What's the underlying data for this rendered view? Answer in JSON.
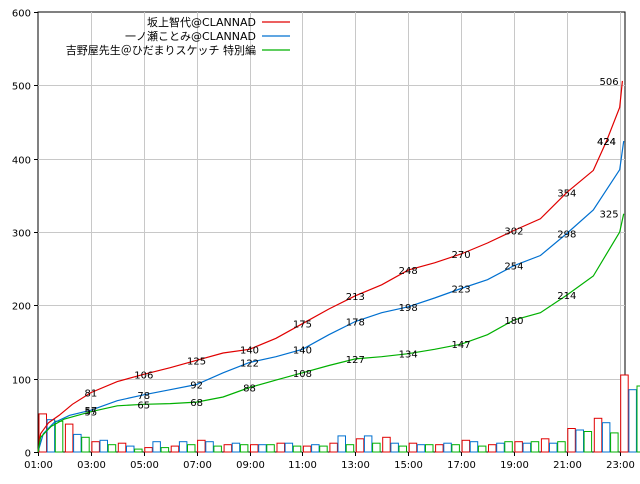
{
  "chart_data": {
    "type": "line",
    "title": "",
    "xlabel": "",
    "ylabel": "",
    "ylim": [
      0,
      600
    ],
    "y_ticks": [
      0,
      100,
      200,
      300,
      400,
      500,
      600
    ],
    "x_tick_labels": [
      "01:00",
      "03:00",
      "05:00",
      "07:00",
      "09:00",
      "11:00",
      "13:00",
      "15:00",
      "17:00",
      "19:00",
      "21:00",
      "23:00"
    ],
    "x_range_hours": [
      1,
      23.2
    ],
    "grid": true,
    "legend_position": "top-left",
    "series": [
      {
        "name": "坂上智代@CLANNAD",
        "color": "#e00000",
        "cumulative": [
          [
            1,
            0
          ],
          [
            1.1,
            25
          ],
          [
            1.4,
            40
          ],
          [
            1.8,
            50
          ],
          [
            2.3,
            65
          ],
          [
            3.0,
            81
          ],
          [
            4.0,
            96
          ],
          [
            5.0,
            106
          ],
          [
            6.0,
            115
          ],
          [
            7.0,
            125
          ],
          [
            8.0,
            135
          ],
          [
            9.0,
            140
          ],
          [
            10.0,
            155
          ],
          [
            11.0,
            175
          ],
          [
            12.0,
            195
          ],
          [
            13.0,
            213
          ],
          [
            14.0,
            228
          ],
          [
            15.0,
            248
          ],
          [
            16.0,
            258
          ],
          [
            17.0,
            270
          ],
          [
            18.0,
            285
          ],
          [
            19.0,
            302
          ],
          [
            20.0,
            318
          ],
          [
            21.0,
            354
          ],
          [
            22.0,
            384
          ],
          [
            22.5,
            424
          ],
          [
            23.0,
            470
          ],
          [
            23.1,
            506
          ]
        ],
        "labels": [
          {
            "x": 3.0,
            "v": 81
          },
          {
            "x": 5.0,
            "v": 106
          },
          {
            "x": 7.0,
            "v": 125
          },
          {
            "x": 9.0,
            "v": 140
          },
          {
            "x": 11.0,
            "v": 175
          },
          {
            "x": 13.0,
            "v": 213
          },
          {
            "x": 15.0,
            "v": 248
          },
          {
            "x": 17.0,
            "v": 270
          },
          {
            "x": 19.0,
            "v": 302
          },
          {
            "x": 21.0,
            "v": 354
          },
          {
            "x": 22.5,
            "v": 424
          },
          {
            "x": 22.6,
            "v": 506
          }
        ],
        "hourly": [
          52,
          38,
          14,
          12,
          6,
          8,
          16,
          10,
          10,
          12,
          8,
          12,
          18,
          20,
          12,
          10,
          16,
          10,
          14,
          18,
          32,
          46,
          105
        ]
      },
      {
        "name": "一ノ瀬ことみ@CLANNAD",
        "color": "#0070d0",
        "cumulative": [
          [
            1,
            0
          ],
          [
            1.2,
            25
          ],
          [
            1.6,
            40
          ],
          [
            2.2,
            50
          ],
          [
            3.0,
            57
          ],
          [
            4.0,
            70
          ],
          [
            5.0,
            78
          ],
          [
            6.0,
            85
          ],
          [
            7.0,
            92
          ],
          [
            8.0,
            108
          ],
          [
            9.0,
            122
          ],
          [
            10.0,
            130
          ],
          [
            11.0,
            140
          ],
          [
            12.0,
            160
          ],
          [
            13.0,
            178
          ],
          [
            14.0,
            190
          ],
          [
            15.0,
            198
          ],
          [
            16.0,
            210
          ],
          [
            17.0,
            223
          ],
          [
            18.0,
            235
          ],
          [
            19.0,
            254
          ],
          [
            20.0,
            268
          ],
          [
            21.0,
            298
          ],
          [
            22.0,
            330
          ],
          [
            23.0,
            385
          ],
          [
            23.15,
            424
          ]
        ],
        "labels": [
          {
            "x": 3.0,
            "v": 57
          },
          {
            "x": 5.0,
            "v": 78
          },
          {
            "x": 7.0,
            "v": 92
          },
          {
            "x": 9.0,
            "v": 122
          },
          {
            "x": 11.0,
            "v": 140
          },
          {
            "x": 13.0,
            "v": 178
          },
          {
            "x": 15.0,
            "v": 198
          },
          {
            "x": 17.0,
            "v": 223
          },
          {
            "x": 19.0,
            "v": 254
          },
          {
            "x": 21.0,
            "v": 298
          },
          {
            "x": 22.5,
            "v": 424
          }
        ],
        "hourly": [
          44,
          24,
          16,
          8,
          14,
          14,
          14,
          12,
          10,
          12,
          10,
          22,
          22,
          12,
          10,
          12,
          14,
          12,
          12,
          12,
          30,
          40,
          85
        ]
      },
      {
        "name": "吉野屋先生＠ひだまりスケッチ 特別編",
        "color": "#00b000",
        "cumulative": [
          [
            1,
            0
          ],
          [
            1.1,
            20
          ],
          [
            1.5,
            35
          ],
          [
            2.0,
            45
          ],
          [
            3.0,
            55
          ],
          [
            4.0,
            63
          ],
          [
            5.0,
            65
          ],
          [
            6.0,
            66
          ],
          [
            7.0,
            68
          ],
          [
            8.0,
            75
          ],
          [
            9.0,
            88
          ],
          [
            10.0,
            98
          ],
          [
            11.0,
            108
          ],
          [
            12.0,
            118
          ],
          [
            13.0,
            127
          ],
          [
            14.0,
            130
          ],
          [
            15.0,
            134
          ],
          [
            16.0,
            140
          ],
          [
            17.0,
            147
          ],
          [
            18.0,
            160
          ],
          [
            19.0,
            180
          ],
          [
            20.0,
            190
          ],
          [
            21.0,
            214
          ],
          [
            22.0,
            240
          ],
          [
            23.0,
            300
          ],
          [
            23.15,
            325
          ]
        ],
        "labels": [
          {
            "x": 3.0,
            "v": 55
          },
          {
            "x": 5.0,
            "v": 65
          },
          {
            "x": 7.0,
            "v": 68
          },
          {
            "x": 9.0,
            "v": 88
          },
          {
            "x": 11.0,
            "v": 108
          },
          {
            "x": 13.0,
            "v": 127
          },
          {
            "x": 15.0,
            "v": 134
          },
          {
            "x": 17.0,
            "v": 147
          },
          {
            "x": 19.0,
            "v": 180
          },
          {
            "x": 21.0,
            "v": 214
          },
          {
            "x": 22.6,
            "v": 325
          }
        ],
        "hourly": [
          42,
          20,
          10,
          4,
          6,
          10,
          8,
          10,
          10,
          8,
          8,
          10,
          12,
          8,
          10,
          10,
          8,
          14,
          14,
          14,
          28,
          26,
          90
        ]
      }
    ]
  }
}
